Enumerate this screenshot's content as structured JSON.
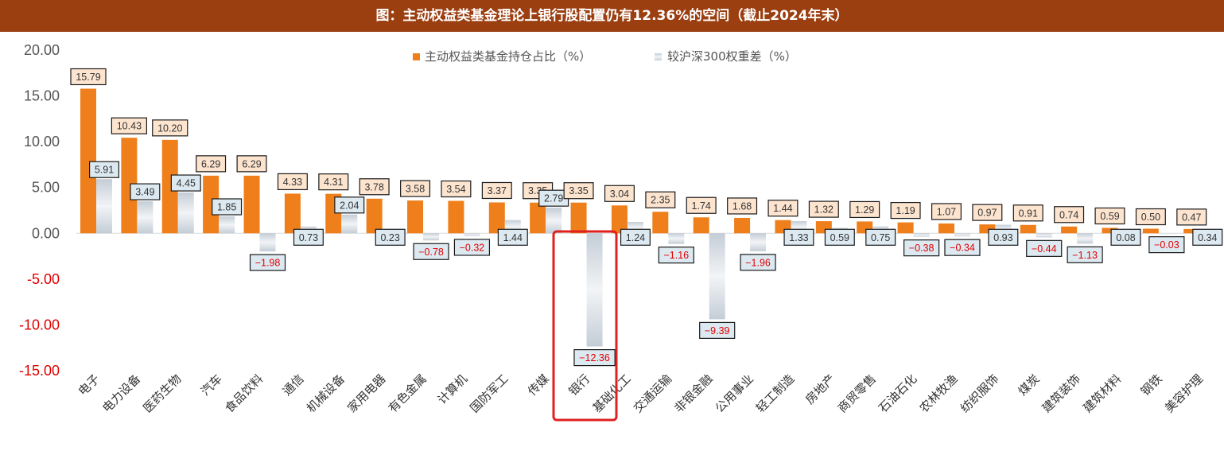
{
  "title": "图：主动权益类基金理论上银行股配置仍有12.36%的空间（截止2024年末）",
  "colors": {
    "header_bg": "#9b3e10",
    "series1": "#ef7f1a",
    "series2": "#c4cdd6",
    "label1_bg": "#fde4cf",
    "label2_bg": "#dde9f1",
    "negative_text": "#e00000",
    "highlight": "#e0201f"
  },
  "chart_data": {
    "type": "bar",
    "title": "图：主动权益类基金理论上银行股配置仍有12.36%的空间（截止2024年末）",
    "xlabel": "",
    "ylabel": "",
    "ylim": [
      -15,
      20
    ],
    "y_ticks": [
      "20.00",
      "15.00",
      "10.00",
      "5.00",
      "0.00",
      "-5.00",
      "-10.00",
      "-15.00"
    ],
    "grid": false,
    "legend_position": "top",
    "highlighted_category": "银行",
    "categories": [
      "电子",
      "电力设备",
      "医药生物",
      "汽车",
      "食品饮料",
      "通信",
      "机械设备",
      "家用电器",
      "有色金属",
      "计算机",
      "国防军工",
      "传媒",
      "银行",
      "基础化工",
      "交通运输",
      "非银金融",
      "公用事业",
      "轻工制造",
      "房地产",
      "商贸零售",
      "石油石化",
      "农林牧渔",
      "纺织服饰",
      "煤炭",
      "建筑装饰",
      "建筑材料",
      "钢铁",
      "美容护理"
    ],
    "series": [
      {
        "name": "主动权益类基金持仓占比（%）",
        "values": [
          15.79,
          10.43,
          10.2,
          6.29,
          6.29,
          4.33,
          4.31,
          3.78,
          3.58,
          3.54,
          3.37,
          3.35,
          3.35,
          3.04,
          2.35,
          1.74,
          1.68,
          1.44,
          1.32,
          1.29,
          1.19,
          1.07,
          0.97,
          0.91,
          0.74,
          0.59,
          0.5,
          0.47
        ],
        "labels": [
          "15.79",
          "10.43",
          "10.20",
          "6.29",
          "6.29",
          "4.33",
          "4.31",
          "3.78",
          "3.58",
          "3.54",
          "3.37",
          "3.35",
          "3.35",
          "3.04",
          "2.35",
          "1.74",
          "1.68",
          "1.44",
          "1.32",
          "1.29",
          "1.19",
          "1.07",
          "0.97",
          "0.91",
          "0.74",
          "0.59",
          "0.50",
          "0.47"
        ]
      },
      {
        "name": "较沪深300权重差（%）",
        "values": [
          5.91,
          3.49,
          4.45,
          1.85,
          -1.98,
          0.73,
          2.04,
          0.23,
          -0.78,
          -0.32,
          1.44,
          2.79,
          -12.36,
          1.24,
          -1.16,
          -9.39,
          -1.96,
          1.33,
          0.59,
          0.75,
          -0.38,
          -0.34,
          0.93,
          -0.44,
          -1.13,
          0.08,
          -0.03,
          0.34
        ],
        "labels": [
          "5.91",
          "3.49",
          "4.45",
          "1.85",
          "−1.98",
          "0.73",
          "2.04",
          "0.23",
          "−0.78",
          "−0.32",
          "1.44",
          "2.79",
          "−12.36",
          "1.24",
          "−1.16",
          "−9.39",
          "−1.96",
          "1.33",
          "0.59",
          "0.75",
          "−0.38",
          "−0.34",
          "0.93",
          "−0.44",
          "−1.13",
          "0.08",
          "−0.03",
          "0.34"
        ]
      }
    ]
  }
}
